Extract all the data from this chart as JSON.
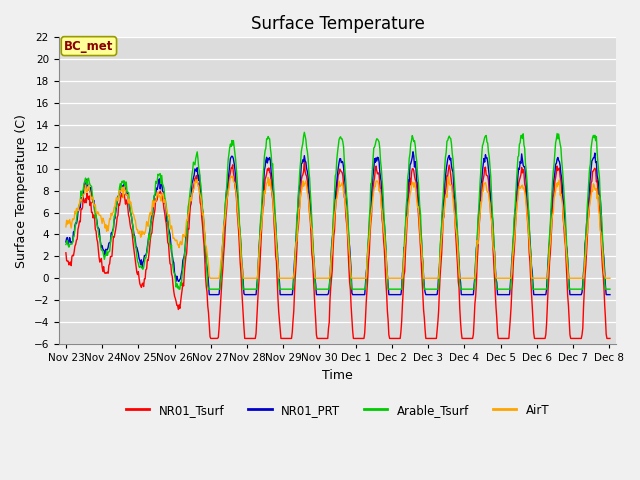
{
  "title": "Surface Temperature",
  "ylabel": "Surface Temperature (C)",
  "xlabel": "Time",
  "annotation": "BC_met",
  "ylim": [
    -6,
    22
  ],
  "yticks": [
    -6,
    -4,
    -2,
    0,
    2,
    4,
    6,
    8,
    10,
    12,
    14,
    16,
    18,
    20,
    22
  ],
  "series": {
    "NR01_Tsurf": {
      "color": "#ff0000",
      "lw": 1.0
    },
    "NR01_PRT": {
      "color": "#0000cc",
      "lw": 1.0
    },
    "Arable_Tsurf": {
      "color": "#00cc00",
      "lw": 1.0
    },
    "AirT": {
      "color": "#ffa500",
      "lw": 1.0
    }
  },
  "bg_color": "#dcdcdc",
  "grid_color": "#ffffff",
  "fig_color": "#f0f0f0",
  "title_fontsize": 12,
  "tick_fontsize": 7.5,
  "label_fontsize": 9,
  "legend_fontsize": 8.5
}
